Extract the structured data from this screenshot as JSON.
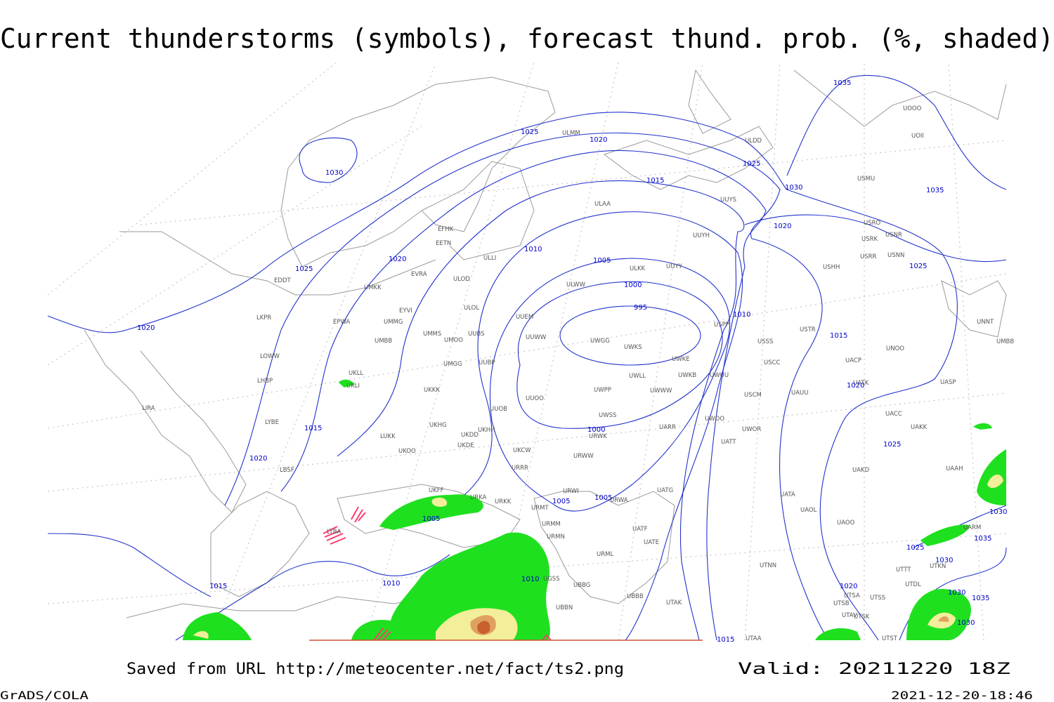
{
  "title": "Current thunderstorms (symbols), forecast thund. prob. (%, shaded)",
  "footer": {
    "source": "Saved from URL http://meteocenter.net/fact/ts2.png",
    "valid": "Valid: 20211220 18Z",
    "software": "GrADS/COLA",
    "timestamp": "2021-12-20-18:46"
  },
  "isobar_labels": [
    1035,
    1025,
    1020,
    1030,
    1025,
    1015,
    1030,
    1035,
    1020,
    1010,
    1025,
    1020,
    1005,
    1025,
    1000,
    995,
    1010,
    1020,
    1015,
    1020,
    1015,
    1000,
    1025,
    1020,
    1005,
    1005,
    1005,
    1030,
    1035,
    1025,
    1030,
    1010,
    1010,
    1015,
    1020,
    1030,
    1035,
    1030,
    1015
  ],
  "stations": [
    "ULMM",
    "ULDD",
    "UOOO",
    "UOII",
    "USMU",
    "UUYS",
    "ULAA",
    "UUYH",
    "USRO",
    "USRK",
    "USNR",
    "USRR",
    "USNN",
    "USHH",
    "EFHK",
    "EETN",
    "EVRA",
    "ULOD",
    "ULLI",
    "UUYY",
    "ULKK",
    "ULWW",
    "EDDT",
    "UMKK",
    "EYVI",
    "ULOL",
    "EPWA",
    "UMMG",
    "UUEM",
    "LKPR",
    "UMMS",
    "UMOO",
    "UUBS",
    "UUWW",
    "UWGG",
    "UWKS",
    "USPP",
    "USTR",
    "USSS",
    "UNNT",
    "UMBB",
    "UNOO",
    "UMBB",
    "LOWW",
    "UWKE",
    "USCC",
    "UACP",
    "UMGG",
    "UUBP",
    "LHBP",
    "UKLL",
    "UKLI",
    "UWLL",
    "UWKB",
    "UWUU",
    "UWWW",
    "UASP",
    "UATK",
    "UWPP",
    "USCM",
    "UAUU",
    "UKKK",
    "UUOO",
    "LIRA",
    "UUOB",
    "UWSS",
    "UACC",
    "LYBE",
    "UWOO",
    "UAKK",
    "UKHG",
    "UKDD",
    "UKHH",
    "UARR",
    "UWOR",
    "LUKK",
    "UKOO",
    "UKDE",
    "UATT",
    "URWK",
    "UKCW",
    "URWW",
    "LBSF",
    "URRR",
    "UAKD",
    "UAAH",
    "UKFF",
    "URKA",
    "URKK",
    "URWI",
    "UATG",
    "URMT",
    "UATA",
    "URWA",
    "UAOL",
    "LTBA",
    "URMM",
    "UAOO",
    "UATF",
    "UATE",
    "UARM",
    "URMN",
    "URML",
    "UTNN",
    "UTKN",
    "UTTT",
    "UGSS",
    "UBBG",
    "UTDL",
    "UBBB",
    "UTSA",
    "UTSS",
    "UTAK",
    "UBBN",
    "UTSB",
    "UTAV",
    "UTSK",
    "UTAA",
    "UTST"
  ]
}
